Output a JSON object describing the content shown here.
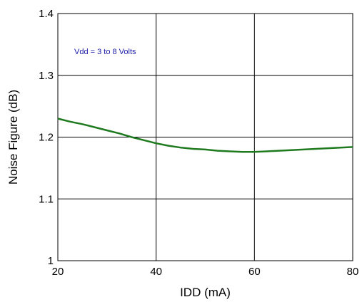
{
  "chart_data": {
    "type": "line",
    "title": "",
    "xlabel": "IDD (mA)",
    "ylabel": "Noise Figure (dB)",
    "xlim": [
      20,
      80
    ],
    "ylim": [
      1.0,
      1.4
    ],
    "x_ticks": [
      20,
      40,
      60,
      80
    ],
    "x_tick_labels": [
      "20",
      "40",
      "60",
      "80"
    ],
    "y_ticks": [
      1.0,
      1.1,
      1.2,
      1.3,
      1.4
    ],
    "y_tick_labels": [
      "1",
      "1.1",
      "1.2",
      "1.3",
      "1.4"
    ],
    "grid": true,
    "annotation": "Vdd = 3 to 8 Volts",
    "series": [
      {
        "color": "#1f7a1f",
        "x": [
          20,
          22.5,
          25,
          27.5,
          30,
          32.5,
          35,
          37.5,
          40,
          42.5,
          45,
          47.5,
          50,
          52.5,
          55,
          57.5,
          60,
          62.5,
          65,
          67.5,
          70,
          72.5,
          75,
          77.5,
          80
        ],
        "y": [
          1.23,
          1.225,
          1.221,
          1.216,
          1.211,
          1.206,
          1.2,
          1.195,
          1.19,
          1.186,
          1.183,
          1.181,
          1.18,
          1.178,
          1.177,
          1.176,
          1.176,
          1.177,
          1.178,
          1.179,
          1.18,
          1.181,
          1.182,
          1.183,
          1.184
        ]
      }
    ],
    "colors": {
      "annotation": "#1a1aa6",
      "line": "#1f7a1f",
      "grid": "#000000"
    }
  }
}
